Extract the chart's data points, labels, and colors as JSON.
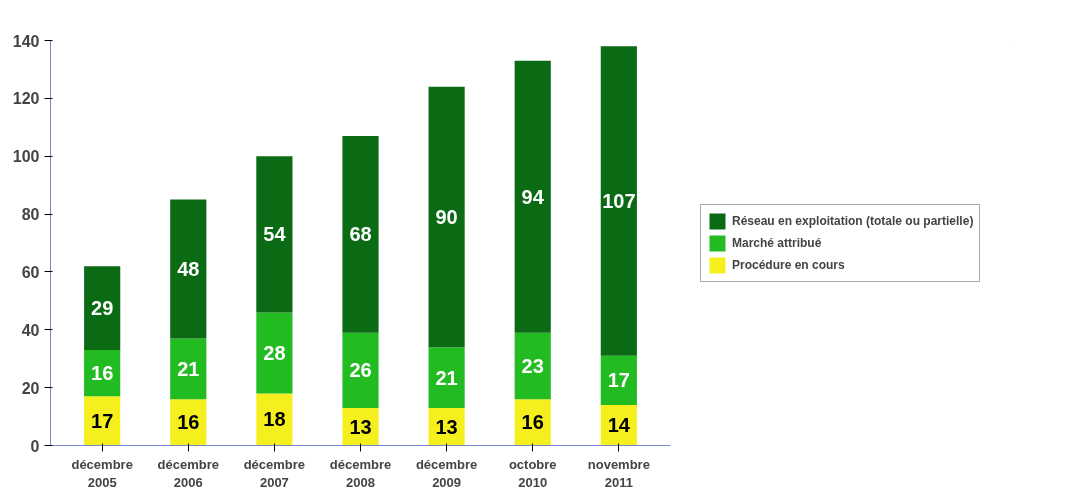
{
  "chart_data": {
    "type": "bar",
    "stacked": true,
    "categories": [
      "décembre\n2005",
      "décembre\n2006",
      "décembre\n2007",
      "décembre\n2008",
      "décembre\n2009",
      "octobre\n2010",
      "novembre\n2011"
    ],
    "series": [
      {
        "name": "Procédure en cours",
        "color": "#f5ef1e",
        "values": [
          17,
          16,
          18,
          13,
          13,
          16,
          14
        ]
      },
      {
        "name": "Marché attribué",
        "color": "#22bb22",
        "values": [
          16,
          21,
          28,
          26,
          21,
          23,
          17
        ]
      },
      {
        "name": "Réseau en exploitation (totale ou partielle)",
        "color": "#0b6a14",
        "values": [
          29,
          48,
          54,
          68,
          90,
          94,
          107
        ]
      }
    ],
    "ylim": [
      0,
      140
    ],
    "yticks": [
      0,
      20,
      40,
      60,
      80,
      100,
      120,
      140
    ],
    "grid": false,
    "legend": "right",
    "data_labels": true
  }
}
